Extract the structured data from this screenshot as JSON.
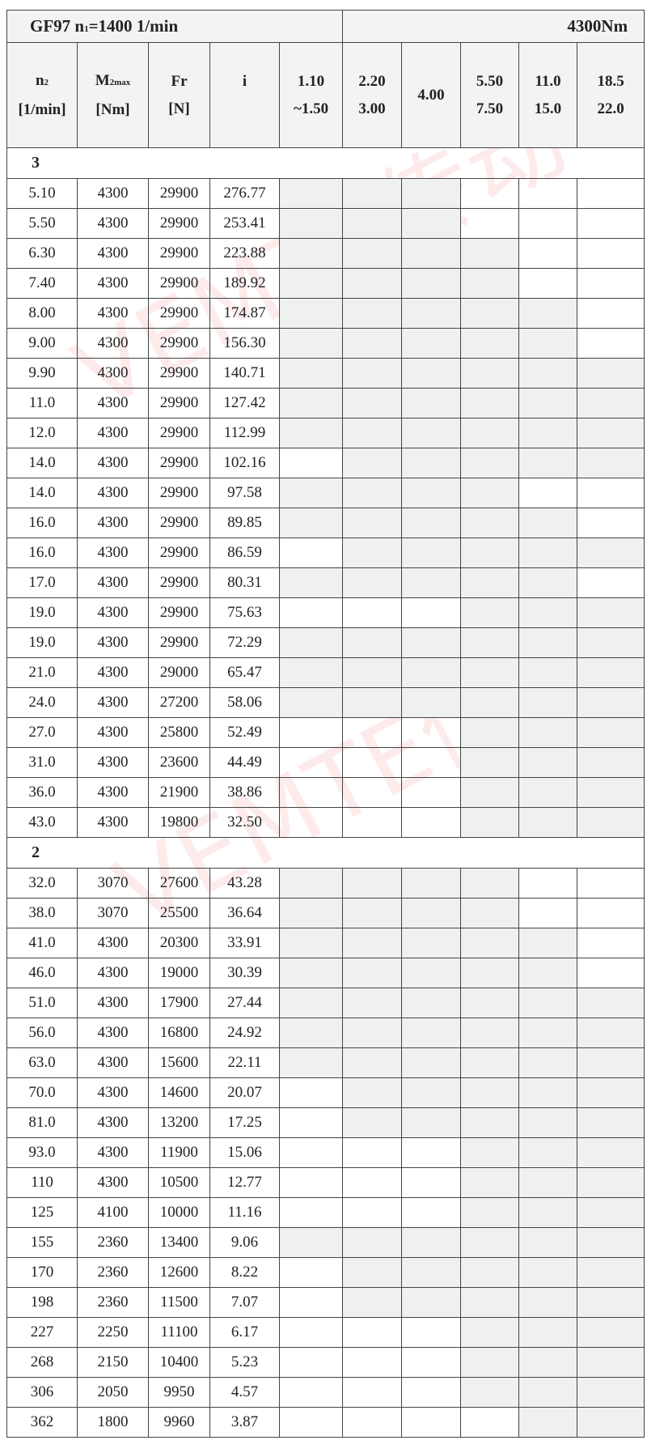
{
  "title": {
    "left": "GF97 n",
    "left_sub": "1",
    "left_rest": "=1400 1/min",
    "right": "4300Nm"
  },
  "watermark": "VEMTE传动",
  "headers": {
    "n2": {
      "main": "n",
      "sub": "2",
      "unit": "[1/min]"
    },
    "m2max": {
      "main": "M",
      "sub": "2max",
      "unit": "[Nm]"
    },
    "fr": {
      "main": "Fr",
      "unit": "[N]"
    },
    "i": {
      "main": "i"
    },
    "motor_cols": [
      {
        "top": "1.10",
        "bottom": "~1.50"
      },
      {
        "top": "2.20",
        "bottom": "3.00"
      },
      {
        "top": "4.00",
        "bottom": ""
      },
      {
        "top": "5.50",
        "bottom": "7.50"
      },
      {
        "top": "11.0",
        "bottom": "15.0"
      },
      {
        "top": "18.5",
        "bottom": "22.0"
      }
    ]
  },
  "shade_color": "#eff0f0",
  "sections": [
    {
      "label": "3",
      "rows": [
        {
          "n2": "5.10",
          "m": "4300",
          "fr": "29900",
          "i": "276.77",
          "shade": [
            1,
            1,
            1,
            0,
            0,
            0
          ]
        },
        {
          "n2": "5.50",
          "m": "4300",
          "fr": "29900",
          "i": "253.41",
          "shade": [
            1,
            1,
            1,
            0,
            0,
            0
          ]
        },
        {
          "n2": "6.30",
          "m": "4300",
          "fr": "29900",
          "i": "223.88",
          "shade": [
            1,
            1,
            1,
            1,
            0,
            0
          ]
        },
        {
          "n2": "7.40",
          "m": "4300",
          "fr": "29900",
          "i": "189.92",
          "shade": [
            1,
            1,
            1,
            1,
            0,
            0
          ]
        },
        {
          "n2": "8.00",
          "m": "4300",
          "fr": "29900",
          "i": "174.87",
          "shade": [
            1,
            1,
            1,
            1,
            1,
            0
          ]
        },
        {
          "n2": "9.00",
          "m": "4300",
          "fr": "29900",
          "i": "156.30",
          "shade": [
            1,
            1,
            1,
            1,
            1,
            0
          ]
        },
        {
          "n2": "9.90",
          "m": "4300",
          "fr": "29900",
          "i": "140.71",
          "shade": [
            1,
            1,
            1,
            1,
            1,
            1
          ]
        },
        {
          "n2": "11.0",
          "m": "4300",
          "fr": "29900",
          "i": "127.42",
          "shade": [
            1,
            1,
            1,
            1,
            1,
            1
          ]
        },
        {
          "n2": "12.0",
          "m": "4300",
          "fr": "29900",
          "i": "112.99",
          "shade": [
            1,
            1,
            1,
            1,
            1,
            1
          ]
        },
        {
          "n2": "14.0",
          "m": "4300",
          "fr": "29900",
          "i": "102.16",
          "shade": [
            0,
            1,
            1,
            1,
            1,
            1
          ]
        },
        {
          "n2": "14.0",
          "m": "4300",
          "fr": "29900",
          "i": "97.58",
          "shade": [
            1,
            1,
            1,
            1,
            0,
            0
          ]
        },
        {
          "n2": "16.0",
          "m": "4300",
          "fr": "29900",
          "i": "89.85",
          "shade": [
            1,
            1,
            1,
            1,
            1,
            0
          ]
        },
        {
          "n2": "16.0",
          "m": "4300",
          "fr": "29900",
          "i": "86.59",
          "shade": [
            0,
            1,
            1,
            1,
            1,
            1
          ]
        },
        {
          "n2": "17.0",
          "m": "4300",
          "fr": "29900",
          "i": "80.31",
          "shade": [
            1,
            1,
            1,
            1,
            1,
            0
          ]
        },
        {
          "n2": "19.0",
          "m": "4300",
          "fr": "29900",
          "i": "75.63",
          "shade": [
            0,
            0,
            0,
            1,
            1,
            1
          ]
        },
        {
          "n2": "19.0",
          "m": "4300",
          "fr": "29900",
          "i": "72.29",
          "shade": [
            1,
            1,
            1,
            1,
            1,
            1
          ]
        },
        {
          "n2": "21.0",
          "m": "4300",
          "fr": "29000",
          "i": "65.47",
          "shade": [
            1,
            1,
            1,
            1,
            1,
            1
          ]
        },
        {
          "n2": "24.0",
          "m": "4300",
          "fr": "27200",
          "i": "58.06",
          "shade": [
            1,
            1,
            1,
            1,
            1,
            1
          ]
        },
        {
          "n2": "27.0",
          "m": "4300",
          "fr": "25800",
          "i": "52.49",
          "shade": [
            0,
            0,
            0,
            1,
            1,
            1
          ]
        },
        {
          "n2": "31.0",
          "m": "4300",
          "fr": "23600",
          "i": "44.49",
          "shade": [
            0,
            0,
            0,
            1,
            1,
            1
          ]
        },
        {
          "n2": "36.0",
          "m": "4300",
          "fr": "21900",
          "i": "38.86",
          "shade": [
            0,
            0,
            0,
            1,
            1,
            1
          ]
        },
        {
          "n2": "43.0",
          "m": "4300",
          "fr": "19800",
          "i": "32.50",
          "shade": [
            0,
            0,
            0,
            1,
            1,
            1
          ]
        }
      ]
    },
    {
      "label": "2",
      "rows": [
        {
          "n2": "32.0",
          "m": "3070",
          "fr": "27600",
          "i": "43.28",
          "shade": [
            1,
            1,
            1,
            1,
            0,
            0
          ]
        },
        {
          "n2": "38.0",
          "m": "3070",
          "fr": "25500",
          "i": "36.64",
          "shade": [
            1,
            1,
            1,
            1,
            0,
            0
          ]
        },
        {
          "n2": "41.0",
          "m": "4300",
          "fr": "20300",
          "i": "33.91",
          "shade": [
            1,
            1,
            1,
            1,
            1,
            0
          ]
        },
        {
          "n2": "46.0",
          "m": "4300",
          "fr": "19000",
          "i": "30.39",
          "shade": [
            1,
            1,
            1,
            1,
            1,
            0
          ]
        },
        {
          "n2": "51.0",
          "m": "4300",
          "fr": "17900",
          "i": "27.44",
          "shade": [
            1,
            1,
            1,
            1,
            1,
            1
          ]
        },
        {
          "n2": "56.0",
          "m": "4300",
          "fr": "16800",
          "i": "24.92",
          "shade": [
            1,
            1,
            1,
            1,
            1,
            1
          ]
        },
        {
          "n2": "63.0",
          "m": "4300",
          "fr": "15600",
          "i": "22.11",
          "shade": [
            1,
            1,
            1,
            1,
            1,
            1
          ]
        },
        {
          "n2": "70.0",
          "m": "4300",
          "fr": "14600",
          "i": "20.07",
          "shade": [
            0,
            1,
            1,
            1,
            1,
            1
          ]
        },
        {
          "n2": "81.0",
          "m": "4300",
          "fr": "13200",
          "i": "17.25",
          "shade": [
            0,
            1,
            1,
            1,
            1,
            1
          ]
        },
        {
          "n2": "93.0",
          "m": "4300",
          "fr": "11900",
          "i": "15.06",
          "shade": [
            0,
            0,
            0,
            1,
            1,
            1
          ]
        },
        {
          "n2": "110",
          "m": "4300",
          "fr": "10500",
          "i": "12.77",
          "shade": [
            0,
            0,
            0,
            1,
            1,
            1
          ]
        },
        {
          "n2": "125",
          "m": "4100",
          "fr": "10000",
          "i": "11.16",
          "shade": [
            0,
            0,
            0,
            1,
            1,
            1
          ]
        },
        {
          "n2": "155",
          "m": "2360",
          "fr": "13400",
          "i": "9.06",
          "shade": [
            1,
            1,
            1,
            1,
            1,
            1
          ]
        },
        {
          "n2": "170",
          "m": "2360",
          "fr": "12600",
          "i": "8.22",
          "shade": [
            0,
            1,
            1,
            1,
            1,
            1
          ]
        },
        {
          "n2": "198",
          "m": "2360",
          "fr": "11500",
          "i": "7.07",
          "shade": [
            0,
            1,
            1,
            1,
            1,
            1
          ]
        },
        {
          "n2": "227",
          "m": "2250",
          "fr": "11100",
          "i": "6.17",
          "shade": [
            0,
            0,
            0,
            1,
            1,
            1
          ]
        },
        {
          "n2": "268",
          "m": "2150",
          "fr": "10400",
          "i": "5.23",
          "shade": [
            0,
            0,
            0,
            1,
            1,
            1
          ]
        },
        {
          "n2": "306",
          "m": "2050",
          "fr": "9950",
          "i": "4.57",
          "shade": [
            0,
            0,
            0,
            1,
            1,
            1
          ]
        },
        {
          "n2": "362",
          "m": "1800",
          "fr": "9960",
          "i": "3.87",
          "shade": [
            0,
            0,
            0,
            0,
            1,
            1
          ]
        }
      ]
    }
  ]
}
